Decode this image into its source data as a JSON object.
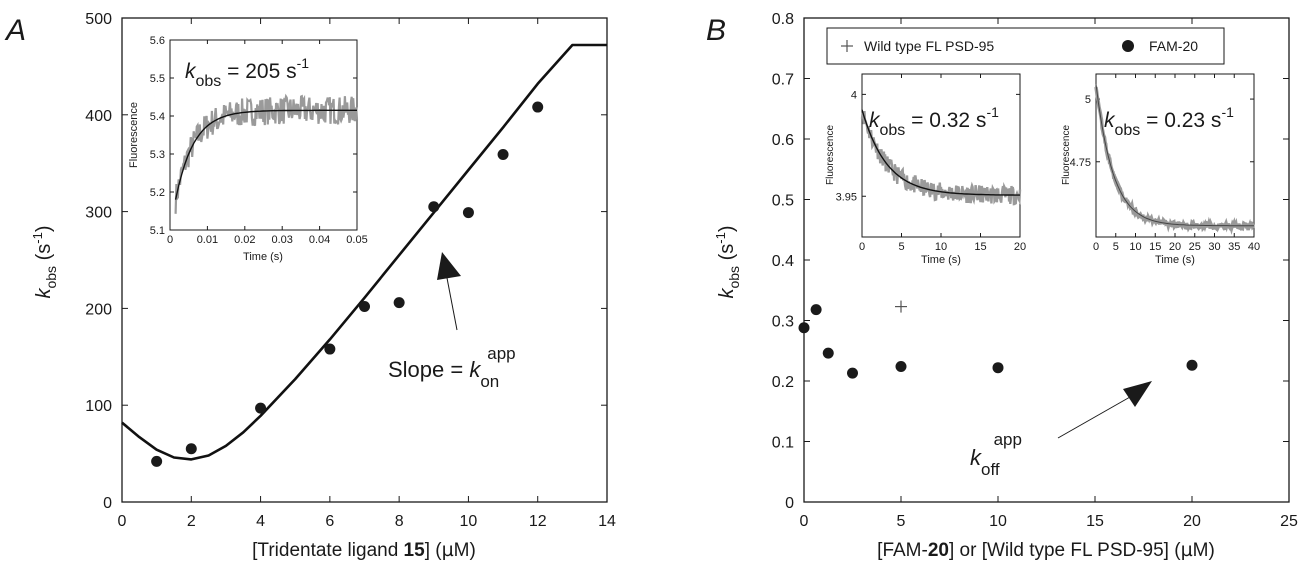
{
  "chart_data": [
    {
      "panel": "A",
      "type": "scatter",
      "xlabel": "[Tridentate ligand 15] (µM)",
      "xlabel_parts": [
        "[Tridentate ligand ",
        "15",
        "] (",
        "µ",
        "M)"
      ],
      "ylabel_main": "k",
      "ylabel_sub": "obs",
      "ylabel_rest": " (s",
      "ylabel_sup": "-1",
      "ylabel_close": ")",
      "xlim": [
        0,
        14
      ],
      "ylim": [
        0,
        500
      ],
      "xticks": [
        "0",
        "2",
        "4",
        "6",
        "8",
        "10",
        "12",
        "14"
      ],
      "yticks": [
        "0",
        "100",
        "200",
        "300",
        "400",
        "500"
      ],
      "points": [
        {
          "x": 1,
          "y": 42
        },
        {
          "x": 2,
          "y": 55
        },
        {
          "x": 4,
          "y": 97
        },
        {
          "x": 6,
          "y": 158
        },
        {
          "x": 7,
          "y": 202
        },
        {
          "x": 8,
          "y": 206
        },
        {
          "x": 9,
          "y": 305
        },
        {
          "x": 10,
          "y": 299
        },
        {
          "x": 11,
          "y": 359
        },
        {
          "x": 12,
          "y": 408
        }
      ],
      "fit_curve": [
        {
          "x": 0,
          "y": 82
        },
        {
          "x": 0.5,
          "y": 67
        },
        {
          "x": 1,
          "y": 54
        },
        {
          "x": 1.5,
          "y": 46
        },
        {
          "x": 2,
          "y": 44
        },
        {
          "x": 2.5,
          "y": 48
        },
        {
          "x": 3,
          "y": 58
        },
        {
          "x": 3.5,
          "y": 72
        },
        {
          "x": 4,
          "y": 89
        },
        {
          "x": 5,
          "y": 127
        },
        {
          "x": 6,
          "y": 168
        },
        {
          "x": 7,
          "y": 211
        },
        {
          "x": 8,
          "y": 255
        },
        {
          "x": 9,
          "y": 299
        },
        {
          "x": 10,
          "y": 343
        },
        {
          "x": 11,
          "y": 387
        },
        {
          "x": 12,
          "y": 432
        },
        {
          "x": 13,
          "y": 476
        },
        {
          "x": 14,
          "y": 521
        }
      ],
      "annotation": {
        "prefix": "Slope = ",
        "main": "k",
        "sub": "on",
        "sup": "app"
      },
      "inset": {
        "xlabel": "Time (s)",
        "ylabel": "Fluorescence",
        "xlim": [
          0,
          0.05
        ],
        "ylim": [
          5.1,
          5.6
        ],
        "xticks": [
          "0",
          "0.01",
          "0.02",
          "0.03",
          "0.04",
          "0.05"
        ],
        "yticks": [
          "5.1",
          "5.2",
          "5.3",
          "5.4",
          "5.5",
          "5.6"
        ],
        "label_main": "k",
        "label_sub": "obs",
        "label_value": " = 205 s",
        "label_sup": "-1"
      }
    },
    {
      "panel": "B",
      "type": "scatter",
      "xlabel_parts": [
        "[FAM-",
        "20",
        "] or [Wild type FL PSD-95] (",
        "µ",
        "M)"
      ],
      "xlabel": "[FAM-20] or [Wild type FL PSD-95] (µM)",
      "ylabel_main": "k",
      "ylabel_sub": "obs",
      "ylabel_rest": " (s",
      "ylabel_sup": "-1",
      "ylabel_close": ")",
      "xlim": [
        0,
        25
      ],
      "ylim": [
        0,
        0.8
      ],
      "xticks": [
        "0",
        "5",
        "10",
        "15",
        "20",
        "25"
      ],
      "yticks": [
        "0",
        "0.1",
        "0.2",
        "0.3",
        "0.4",
        "0.5",
        "0.6",
        "0.7",
        "0.8"
      ],
      "legend": [
        "Wild type FL PSD-95",
        "FAM-20"
      ],
      "series": [
        {
          "name": "FAM-20",
          "marker": "circle",
          "points": [
            {
              "x": 0,
              "y": 0.288
            },
            {
              "x": 0.625,
              "y": 0.318
            },
            {
              "x": 1.25,
              "y": 0.246
            },
            {
              "x": 2.5,
              "y": 0.213
            },
            {
              "x": 5,
              "y": 0.224
            },
            {
              "x": 10,
              "y": 0.222
            },
            {
              "x": 20,
              "y": 0.226
            }
          ]
        },
        {
          "name": "Wild type FL PSD-95",
          "marker": "plus",
          "points": [
            {
              "x": 5,
              "y": 0.323
            }
          ]
        }
      ],
      "annotation": {
        "main": "k",
        "sub": "off",
        "sup": "app"
      },
      "insets": [
        {
          "xlabel": "Time (s)",
          "ylabel": "Fluorescence",
          "xlim": [
            0,
            20
          ],
          "ylim": [
            3.93,
            4.01
          ],
          "xticks": [
            "0",
            "5",
            "10",
            "15",
            "20"
          ],
          "ytick_values": [
            3.95,
            4.0
          ],
          "yticks": [
            "3.95",
            "4"
          ],
          "label_main": "k",
          "label_sub": "obs",
          "label_value": " = 0.32 s",
          "label_sup": "-1"
        },
        {
          "xlabel": "Time (s)",
          "ylabel": "Fluorescence",
          "xlim": [
            0,
            40
          ],
          "ylim": [
            4.45,
            5.1
          ],
          "xticks": [
            "0",
            "5",
            "10",
            "15",
            "20",
            "25",
            "30",
            "35",
            "40"
          ],
          "ytick_values": [
            4.75,
            5.0
          ],
          "yticks": [
            "4.75",
            "5"
          ],
          "label_main": "k",
          "label_sub": "obs",
          "label_value": " = 0.23 s",
          "label_sup": "-1"
        }
      ]
    }
  ],
  "panel_labels": [
    "A",
    "B"
  ],
  "colors": {
    "marker": "#1a1a1a",
    "fit": "#111111",
    "trace": "#9a9a9a",
    "axis": "#1a1a1a"
  }
}
